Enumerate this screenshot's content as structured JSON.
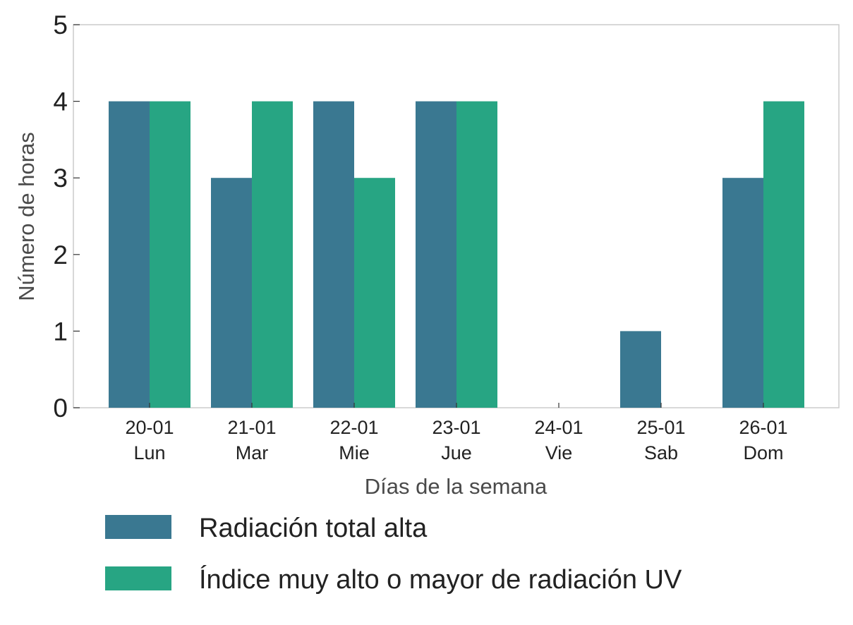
{
  "chart_data": {
    "type": "bar",
    "categories": [
      [
        "20-01",
        "Lun"
      ],
      [
        "21-01",
        "Mar"
      ],
      [
        "22-01",
        "Mie"
      ],
      [
        "23-01",
        "Jue"
      ],
      [
        "24-01",
        "Vie"
      ],
      [
        "25-01",
        "Sab"
      ],
      [
        "26-01",
        "Dom"
      ]
    ],
    "series": [
      {
        "name": "Radiación total alta",
        "color": "#3a7891",
        "values": [
          4,
          3,
          4,
          4,
          0,
          1,
          3
        ]
      },
      {
        "name": "Índice muy alto o mayor de radiación UV",
        "color": "#27a583",
        "values": [
          4,
          4,
          3,
          4,
          0,
          0,
          4
        ]
      }
    ],
    "xlabel": "Días de la semana",
    "ylabel": "Número de horas",
    "ylim": [
      0,
      5
    ],
    "yticks": [
      0,
      1,
      2,
      3,
      4,
      5
    ],
    "grid": false,
    "legend_position": "bottom"
  }
}
